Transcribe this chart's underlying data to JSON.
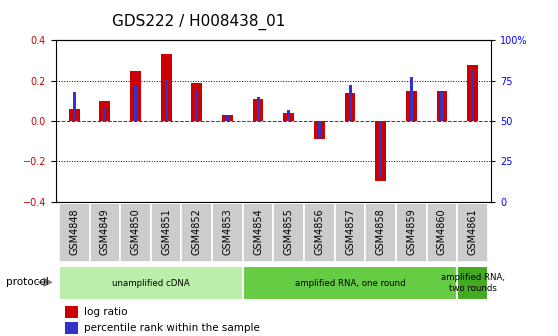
{
  "title": "GDS222 / H008438_01",
  "samples": [
    "GSM4848",
    "GSM4849",
    "GSM4850",
    "GSM4851",
    "GSM4852",
    "GSM4853",
    "GSM4854",
    "GSM4855",
    "GSM4856",
    "GSM4857",
    "GSM4858",
    "GSM4859",
    "GSM4860",
    "GSM4861"
  ],
  "log_ratio": [
    0.06,
    0.1,
    0.25,
    0.33,
    0.19,
    0.03,
    0.11,
    0.04,
    -0.09,
    0.14,
    -0.3,
    0.15,
    0.15,
    0.28
  ],
  "percentile": [
    0.68,
    0.58,
    0.72,
    0.76,
    0.69,
    0.54,
    0.65,
    0.57,
    0.4,
    0.72,
    0.15,
    0.77,
    0.68,
    0.82
  ],
  "log_ratio_color": "#cc0000",
  "percentile_color": "#3333cc",
  "ylim_left": [
    -0.4,
    0.4
  ],
  "yticks_left": [
    -0.4,
    -0.2,
    0.0,
    0.2,
    0.4
  ],
  "ytick_labels_right": [
    "0",
    "25",
    "50",
    "75",
    "100%"
  ],
  "protocols": [
    {
      "label": "unamplified cDNA",
      "start": 0,
      "end": 5,
      "color": "#bbeeaa"
    },
    {
      "label": "amplified RNA, one round",
      "start": 6,
      "end": 12,
      "color": "#66cc44"
    },
    {
      "label": "amplified RNA,\ntwo rounds",
      "start": 13,
      "end": 13,
      "color": "#44aa22"
    }
  ],
  "protocol_label": "protocol",
  "legend_log_ratio": "log ratio",
  "legend_percentile": "percentile rank within the sample",
  "bar_width": 0.35,
  "percentile_bar_width": 0.1,
  "title_fontsize": 11,
  "tick_fontsize": 7,
  "label_fontsize": 7.5,
  "background_color": "#ffffff"
}
